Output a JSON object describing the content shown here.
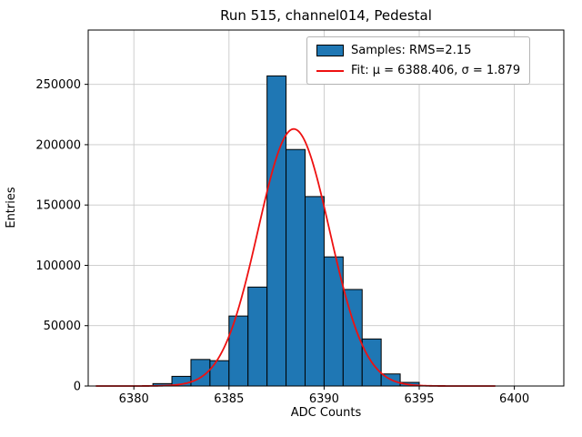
{
  "title": "Run 515, channel014, Pedestal",
  "axes": {
    "xlabel": "ADC Counts",
    "ylabel": "Entries"
  },
  "legend": {
    "samples_label": "Samples: RMS=2.15",
    "fit_label": "Fit: μ = 6388.406, σ = 1.879"
  },
  "colors": {
    "bar_fill": "#1f77b4",
    "bar_edge": "#000000",
    "fit_line": "#ee1111",
    "grid": "#c8c8c8",
    "frame": "#000000"
  },
  "chart_data": {
    "type": "bar",
    "title": "Run 515, channel014, Pedestal",
    "xlabel": "ADC Counts",
    "ylabel": "Entries",
    "bin_edges": [
      6381,
      6382,
      6383,
      6384,
      6385,
      6386,
      6387,
      6388,
      6389,
      6390,
      6391,
      6392,
      6393,
      6394,
      6395
    ],
    "counts": [
      2000,
      8000,
      22000,
      21000,
      58000,
      82000,
      257000,
      196000,
      157000,
      107000,
      80000,
      39000,
      10000,
      3000
    ],
    "rms": 2.15,
    "fit": {
      "mu": 6388.406,
      "sigma": 1.879,
      "amplitude": 213000,
      "x_start": 6378,
      "x_end": 6399
    },
    "xticks": [
      6380,
      6385,
      6390,
      6395,
      6400
    ],
    "yticks": [
      0,
      50000,
      100000,
      150000,
      200000,
      250000
    ],
    "xlim": [
      6377.6,
      6402.6
    ],
    "ylim": [
      0,
      295000
    ],
    "grid": true,
    "legend_position": "upper right",
    "legend_entries": [
      "Samples: RMS=2.15",
      "Fit: μ = 6388.406, σ = 1.879"
    ]
  }
}
